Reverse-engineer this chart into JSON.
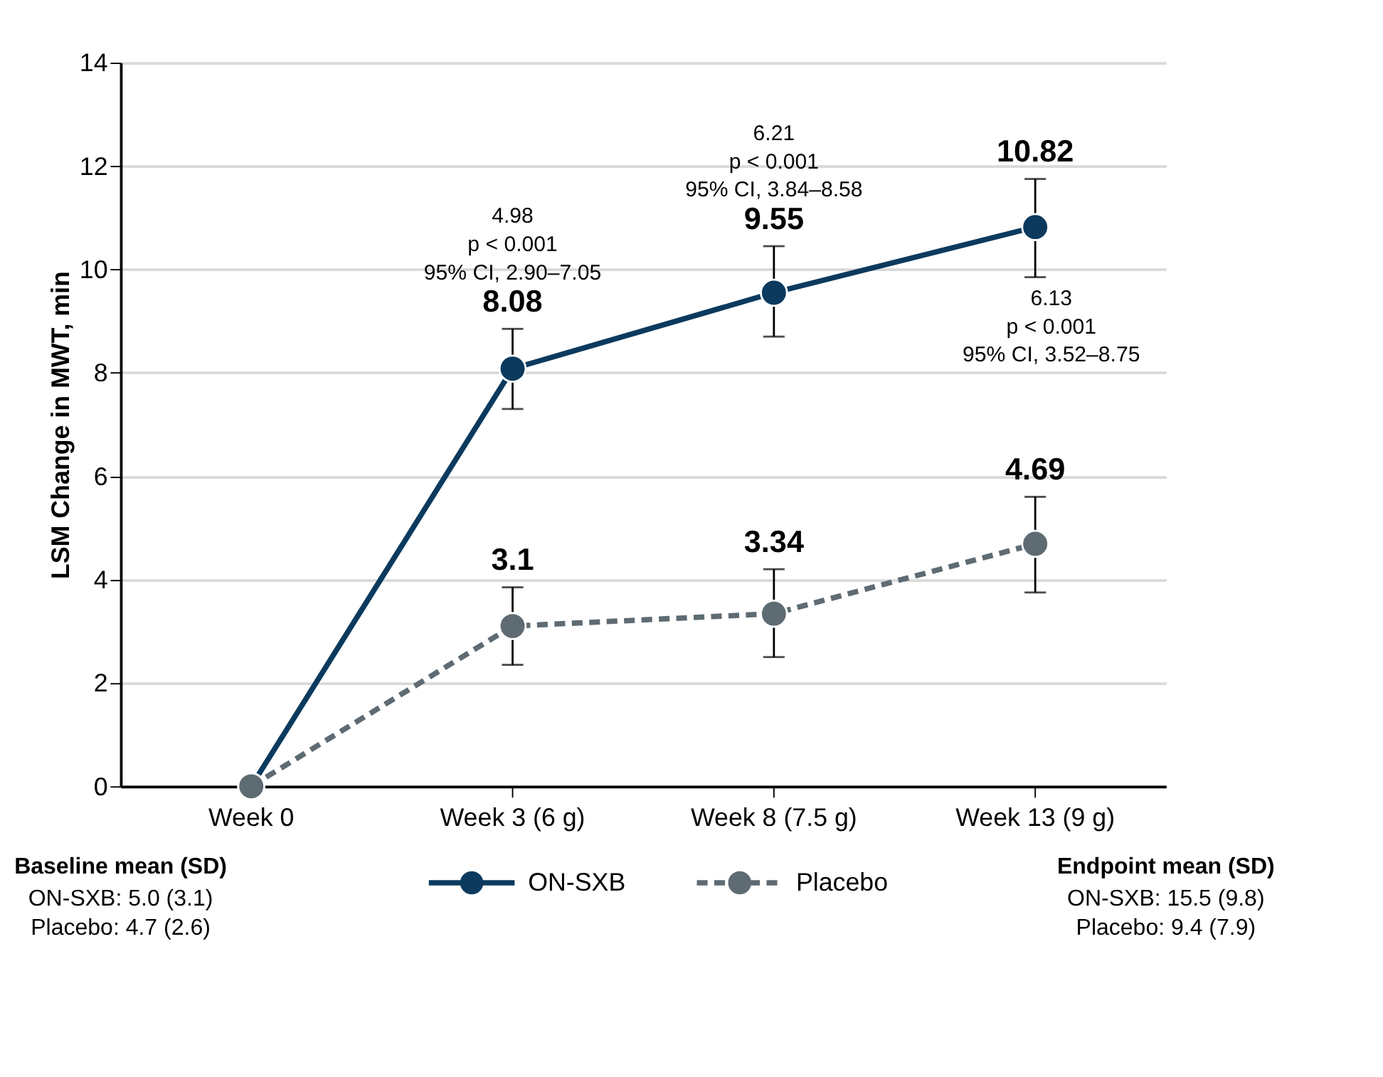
{
  "chart_data": {
    "type": "line",
    "ylabel": "LSM Change in MWT, min",
    "categories": [
      "Week 0",
      "Week 3 (6 g)",
      "Week 8 (7.5 g)",
      "Week 13 (9 g)"
    ],
    "series": [
      {
        "name": "ON-SXB",
        "color": "#0b3a5e",
        "line_style": "solid",
        "values": [
          0,
          8.08,
          9.55,
          10.82
        ],
        "errors": [
          null,
          [
            7.3,
            8.85
          ],
          [
            8.7,
            10.45
          ],
          [
            9.85,
            11.75
          ]
        ],
        "value_labels": [
          null,
          "8.08",
          "9.55",
          "10.82"
        ]
      },
      {
        "name": "Placebo",
        "color": "#5e6b73",
        "line_style": "dashed",
        "values": [
          0,
          3.1,
          3.34,
          4.69
        ],
        "errors": [
          null,
          [
            2.35,
            3.85
          ],
          [
            2.5,
            4.2
          ],
          [
            3.75,
            5.6
          ]
        ],
        "value_labels": [
          null,
          "3.1",
          "3.34",
          "4.69"
        ]
      }
    ],
    "ylim": [
      0,
      14
    ],
    "yticks": [
      0,
      2,
      4,
      6,
      8,
      10,
      12,
      14
    ],
    "grid": "y",
    "marker": "circle",
    "legend": "bottom",
    "annotations": [
      "4.98\np < 0.001\n95% CI, 2.90–7.05",
      "6.21\np  < 0.001\n95% CI, 3.84–8.58",
      "6.13\np  < 0.001\n95% CI, 3.52–8.75",
      "Baseline mean (SD)\nON-SXB: 5.0 (3.1)\nPlacebo: 4.7 (2.6)",
      "Endpoint mean (SD)\nON-SXB: 15.5 (9.8)\nPlacebo: 9.4 (7.9)"
    ]
  }
}
